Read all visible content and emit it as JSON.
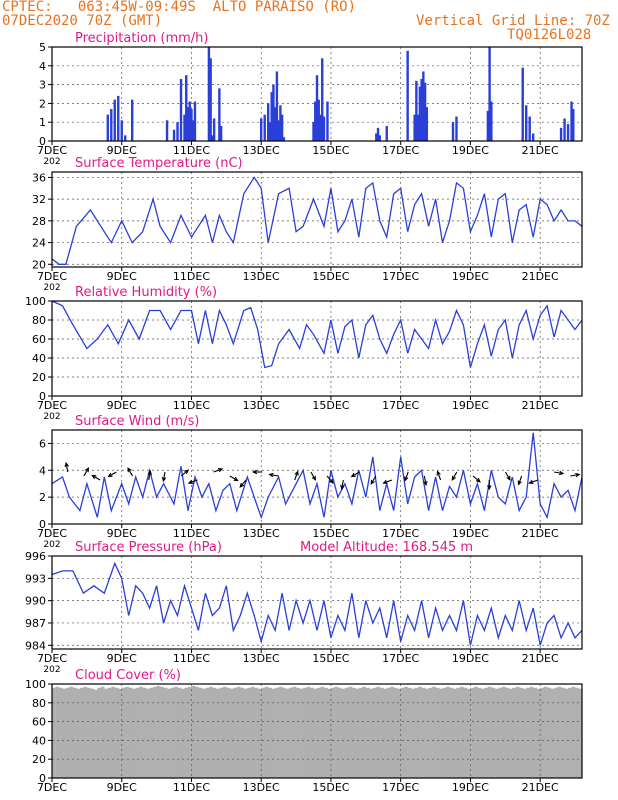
{
  "header": {
    "line1": "CPTEC:   063:45W-09:49S  ALTO PARAISO (RO)",
    "line2": "07DEC2020 70Z (GMT)",
    "grid_note": "Vertical Grid Line: 70Z",
    "code": "TQ0126L028"
  },
  "colors": {
    "header": "#e8731e",
    "title": "#e0198a",
    "series": "#2a3fd8",
    "cloud": "#b0b0b0"
  },
  "x_axis": {
    "tick_labels": [
      "7DEC",
      "9DEC",
      "11DEC",
      "13DEC",
      "15DEC",
      "17DEC",
      "19DEC",
      "21DEC"
    ],
    "tick_days": [
      7,
      9,
      11,
      13,
      15,
      17,
      19,
      21
    ],
    "range_days": [
      7,
      22.2
    ],
    "first_year_fragment": "202"
  },
  "chart_data": [
    {
      "type": "bar",
      "title": "Precipitation (mm/h)",
      "ylim": [
        0,
        5
      ],
      "yticks": [
        0,
        1,
        2,
        3,
        4,
        5
      ],
      "grid": true,
      "x": [
        8.6,
        8.7,
        8.8,
        8.9,
        9.0,
        9.1,
        9.3,
        10.3,
        10.5,
        10.6,
        10.7,
        10.8,
        10.85,
        10.9,
        10.95,
        11.0,
        11.05,
        11.1,
        11.5,
        11.55,
        11.6,
        11.65,
        11.8,
        11.85,
        13.0,
        13.1,
        13.2,
        13.25,
        13.3,
        13.35,
        13.4,
        13.45,
        13.5,
        13.55,
        13.6,
        13.65,
        14.5,
        14.55,
        14.6,
        14.65,
        14.7,
        14.75,
        14.8,
        14.9,
        16.3,
        16.35,
        16.4,
        16.6,
        17.2,
        17.4,
        17.45,
        17.5,
        17.55,
        17.6,
        17.65,
        17.7,
        17.75,
        18.5,
        18.6,
        19.5,
        19.55,
        19.6,
        20.5,
        20.6,
        20.7,
        20.8,
        21.6,
        21.7,
        21.8,
        21.9,
        21.95
      ],
      "values": [
        1.4,
        1.7,
        2.2,
        2.4,
        1.1,
        0.3,
        2.2,
        1.1,
        0.6,
        1.0,
        3.3,
        1.4,
        3.5,
        1.8,
        2.1,
        1.7,
        1.1,
        2.1,
        5.0,
        4.4,
        0.3,
        1.2,
        2.8,
        0.8,
        1.2,
        1.4,
        2.0,
        1.0,
        2.6,
        3.0,
        1.8,
        3.7,
        1.1,
        1.9,
        1.4,
        0.2,
        1.0,
        2.1,
        3.5,
        2.2,
        1.4,
        4.4,
        1.3,
        2.1,
        0.4,
        0.7,
        0.3,
        0.8,
        4.8,
        1.4,
        3.2,
        1.4,
        2.9,
        3.3,
        3.7,
        3.1,
        1.8,
        1.0,
        1.3,
        1.6,
        5.0,
        2.1,
        3.9,
        1.9,
        1.3,
        0.4,
        0.7,
        1.2,
        0.9,
        2.1,
        1.7
      ]
    },
    {
      "type": "line",
      "title": "Surface Temperature (nC)",
      "ylim": [
        19.5,
        37
      ],
      "yticks": [
        20,
        24,
        28,
        32,
        36
      ],
      "grid": true,
      "x": [
        7.0,
        7.2,
        7.4,
        7.7,
        8.1,
        8.4,
        8.7,
        9.0,
        9.3,
        9.6,
        9.9,
        10.1,
        10.4,
        10.7,
        11.0,
        11.2,
        11.4,
        11.6,
        11.8,
        12.0,
        12.2,
        12.5,
        12.8,
        13.0,
        13.2,
        13.5,
        13.8,
        14.0,
        14.2,
        14.5,
        14.8,
        15.0,
        15.2,
        15.4,
        15.6,
        15.8,
        16.0,
        16.2,
        16.4,
        16.6,
        16.8,
        17.0,
        17.2,
        17.4,
        17.6,
        17.8,
        18.0,
        18.2,
        18.4,
        18.6,
        18.8,
        19.0,
        19.2,
        19.4,
        19.6,
        19.8,
        20.0,
        20.2,
        20.4,
        20.6,
        20.8,
        21.0,
        21.2,
        21.4,
        21.6,
        21.8,
        22.0,
        22.2
      ],
      "values": [
        21,
        20,
        20,
        27,
        30,
        27,
        24,
        28,
        24,
        26,
        32,
        27,
        24,
        29,
        25,
        27,
        29,
        24,
        29,
        26,
        24,
        33,
        36,
        34,
        24,
        33,
        34,
        26,
        27,
        32,
        27,
        34,
        26,
        28,
        32,
        25,
        34,
        35,
        28,
        25,
        33,
        34,
        26,
        31,
        33,
        27,
        32,
        24,
        28,
        35,
        34,
        26,
        29,
        33,
        25,
        32,
        33,
        24,
        30,
        31,
        25,
        32,
        31,
        28,
        30,
        28,
        28,
        27
      ]
    },
    {
      "type": "line",
      "title": "Relative Humidity (%)",
      "ylim": [
        0,
        100
      ],
      "yticks": [
        0,
        20,
        40,
        60,
        80,
        100
      ],
      "grid": true,
      "x": [
        7.0,
        7.3,
        7.6,
        8.0,
        8.3,
        8.6,
        8.9,
        9.2,
        9.5,
        9.8,
        10.1,
        10.4,
        10.7,
        11.0,
        11.2,
        11.4,
        11.6,
        11.8,
        12.0,
        12.2,
        12.5,
        12.7,
        12.9,
        13.1,
        13.3,
        13.5,
        13.8,
        14.1,
        14.3,
        14.5,
        14.8,
        15.0,
        15.2,
        15.4,
        15.6,
        15.8,
        16.0,
        16.2,
        16.4,
        16.6,
        16.8,
        17.0,
        17.2,
        17.4,
        17.6,
        17.8,
        18.0,
        18.2,
        18.4,
        18.6,
        18.8,
        19.0,
        19.2,
        19.4,
        19.6,
        19.8,
        20.0,
        20.2,
        20.4,
        20.6,
        20.8,
        21.0,
        21.2,
        21.4,
        21.6,
        21.8,
        22.0,
        22.2
      ],
      "values": [
        100,
        95,
        75,
        50,
        60,
        75,
        55,
        80,
        60,
        90,
        90,
        70,
        90,
        90,
        55,
        90,
        55,
        90,
        75,
        55,
        90,
        93,
        70,
        30,
        32,
        55,
        70,
        50,
        75,
        65,
        45,
        80,
        45,
        73,
        80,
        40,
        75,
        85,
        60,
        45,
        65,
        80,
        45,
        70,
        60,
        50,
        80,
        55,
        68,
        90,
        75,
        30,
        55,
        75,
        42,
        70,
        80,
        40,
        75,
        90,
        60,
        85,
        95,
        62,
        90,
        80,
        70,
        80
      ]
    },
    {
      "type": "line",
      "title": "Surface Wind (m/s)",
      "ylim": [
        0,
        7
      ],
      "yticks": [
        0,
        2,
        4,
        6
      ],
      "grid": true,
      "x": [
        7.0,
        7.3,
        7.5,
        7.8,
        8.0,
        8.3,
        8.5,
        8.7,
        9.0,
        9.2,
        9.4,
        9.6,
        9.8,
        10.0,
        10.2,
        10.5,
        10.7,
        10.9,
        11.1,
        11.3,
        11.5,
        11.7,
        11.9,
        12.1,
        12.3,
        12.6,
        12.8,
        13.0,
        13.2,
        13.5,
        13.7,
        14.0,
        14.2,
        14.4,
        14.6,
        14.8,
        15.0,
        15.2,
        15.4,
        15.6,
        15.8,
        16.0,
        16.2,
        16.4,
        16.6,
        16.8,
        17.0,
        17.2,
        17.4,
        17.6,
        17.8,
        18.0,
        18.2,
        18.4,
        18.6,
        18.8,
        19.0,
        19.2,
        19.4,
        19.6,
        19.8,
        20.0,
        20.2,
        20.4,
        20.6,
        20.8,
        21.0,
        21.2,
        21.4,
        21.6,
        21.8,
        22.0,
        22.2
      ],
      "values": [
        3,
        3.5,
        2,
        1,
        3,
        0.5,
        3.5,
        1,
        3,
        1.5,
        3.5,
        2,
        4,
        2,
        3,
        1.5,
        4.3,
        1,
        3.5,
        2,
        3,
        1,
        2.5,
        3,
        1,
        3.5,
        2,
        0.5,
        2,
        3.5,
        1.5,
        3,
        4,
        1.5,
        3,
        0.5,
        4,
        2,
        3,
        1.5,
        4,
        2,
        5,
        1,
        3,
        1,
        5,
        1.5,
        3.5,
        4,
        1,
        3.5,
        1,
        2.8,
        2,
        4,
        1.5,
        3,
        1,
        4,
        2,
        1.5,
        3.5,
        1,
        2,
        6.8,
        1.5,
        0.5,
        3,
        2,
        2.5,
        1,
        3.5
      ]
    },
    {
      "type": "line",
      "title": "Surface Pressure (hPa)",
      "annotation": "Model Altitude: 168.545  m",
      "ylim": [
        983.5,
        996
      ],
      "yticks": [
        984,
        987,
        990,
        993,
        996
      ],
      "grid": true,
      "x": [
        7.0,
        7.3,
        7.6,
        7.9,
        8.2,
        8.5,
        8.8,
        9.0,
        9.2,
        9.4,
        9.6,
        9.8,
        10.0,
        10.2,
        10.4,
        10.6,
        10.8,
        11.0,
        11.2,
        11.4,
        11.6,
        11.8,
        12.0,
        12.2,
        12.4,
        12.6,
        12.8,
        13.0,
        13.2,
        13.4,
        13.6,
        13.8,
        14.0,
        14.2,
        14.4,
        14.6,
        14.8,
        15.0,
        15.2,
        15.4,
        15.6,
        15.8,
        16.0,
        16.2,
        16.4,
        16.6,
        16.8,
        17.0,
        17.2,
        17.4,
        17.6,
        17.8,
        18.0,
        18.2,
        18.4,
        18.6,
        18.8,
        19.0,
        19.2,
        19.4,
        19.6,
        19.8,
        20.0,
        20.2,
        20.4,
        20.6,
        20.8,
        21.0,
        21.2,
        21.4,
        21.6,
        21.8,
        22.0,
        22.2
      ],
      "values": [
        993.5,
        994,
        994,
        991,
        992,
        991,
        995,
        993,
        988,
        992,
        991,
        989,
        992,
        987,
        990,
        988,
        992,
        989,
        986,
        991,
        988,
        989,
        992,
        986,
        988,
        991,
        988,
        984.5,
        988,
        986,
        991,
        986,
        990,
        987,
        990,
        986,
        990,
        985,
        988,
        986,
        991,
        985,
        990,
        987,
        989,
        985,
        990,
        984.5,
        988,
        986,
        990,
        985,
        989,
        986,
        988,
        986,
        990,
        984,
        988,
        986,
        989,
        985,
        988,
        986,
        990,
        986,
        989,
        984,
        987,
        988,
        985,
        987,
        985,
        986
      ]
    },
    {
      "type": "bar",
      "title": "Cloud Cover (%)",
      "ylim": [
        0,
        100
      ],
      "yticks": [
        0,
        20,
        40,
        60,
        80,
        100
      ],
      "grid": true,
      "x_start": 7.0,
      "x_step": 0.1,
      "values": [
        96,
        97,
        96,
        95,
        96,
        97,
        96,
        95,
        96,
        97,
        96,
        95,
        94,
        96,
        97,
        95,
        96,
        97,
        96,
        95,
        96,
        97,
        96,
        95,
        96,
        97,
        96,
        95,
        96,
        97,
        98,
        97,
        96,
        95,
        96,
        97,
        96,
        95,
        96,
        97,
        98,
        97,
        96,
        95,
        96,
        97,
        96,
        95,
        96,
        97,
        96,
        95,
        96,
        97,
        96,
        95,
        96,
        97,
        96,
        95,
        96,
        97,
        96,
        95,
        96,
        97,
        96,
        95,
        96,
        97,
        96,
        95,
        96,
        97,
        96,
        95,
        96,
        97,
        96,
        95,
        96,
        97,
        96,
        95,
        96,
        97,
        96,
        95,
        96,
        97,
        96,
        95,
        96,
        97,
        96,
        95,
        96,
        97,
        96,
        95,
        96,
        97,
        96,
        95,
        96,
        97,
        96,
        95,
        96,
        97,
        96,
        95,
        96,
        97,
        96,
        95,
        96,
        97,
        96,
        95,
        96,
        97,
        96,
        95,
        96,
        97,
        96,
        95,
        96,
        97,
        96,
        95,
        96,
        97,
        96,
        95,
        96,
        97,
        96,
        95,
        96,
        97,
        96,
        95,
        96,
        97,
        96,
        95,
        96,
        97,
        96,
        95
      ]
    }
  ]
}
